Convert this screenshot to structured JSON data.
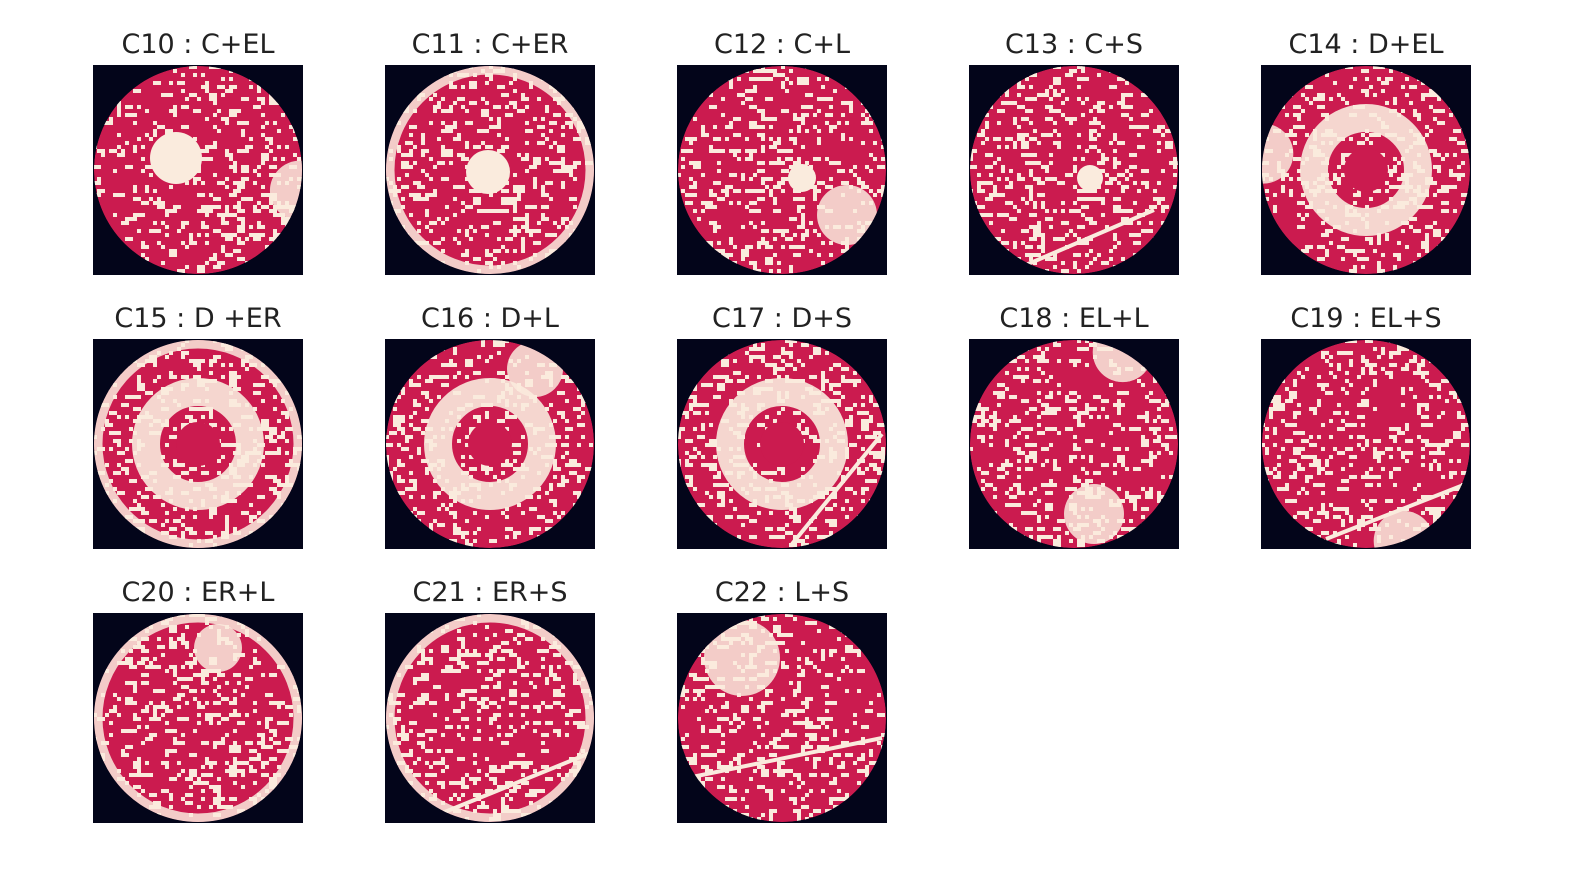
{
  "panels": [
    {
      "title": "C10 : C+EL"
    },
    {
      "title": "C11 : C+ER"
    },
    {
      "title": "C12 : C+L"
    },
    {
      "title": "C13 : C+S"
    },
    {
      "title": "C14 : D+EL"
    },
    {
      "title": "C15 : D +ER"
    },
    {
      "title": "C16 : D+L"
    },
    {
      "title": "C17 : D+S"
    },
    {
      "title": "C18 : EL+L"
    },
    {
      "title": "C19 : EL+S"
    },
    {
      "title": "C20 : ER+L"
    },
    {
      "title": "C21 : ER+S"
    },
    {
      "title": "C22 : L+S"
    }
  ]
}
